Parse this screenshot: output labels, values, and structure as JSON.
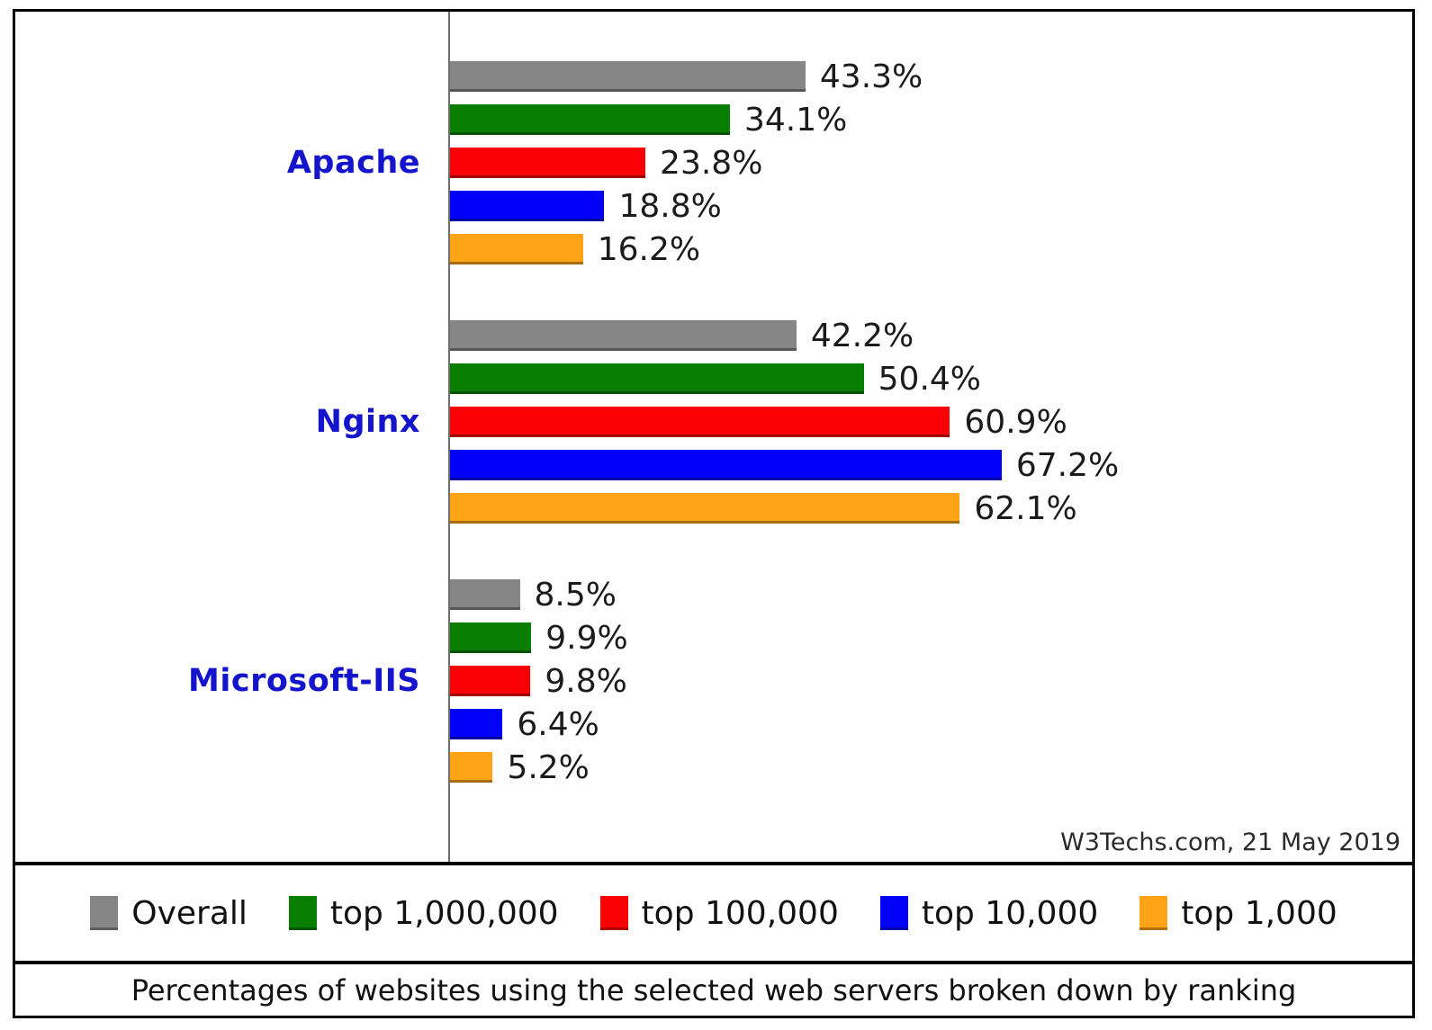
{
  "watermark": "W3Techs.com, 21 May 2019",
  "caption": "Percentages of websites using the selected web servers broken down by ranking",
  "colors": {
    "category_label": "#1414cc",
    "axis_line": "#6e6e6e",
    "frame_border": "#000000",
    "value_label": "#1b1b1b"
  },
  "chart_data": {
    "type": "bar",
    "orientation": "horizontal",
    "title": "Percentages of websites using the selected web servers broken down by ranking",
    "source": "W3Techs.com, 21 May 2019",
    "categories": [
      "Apache",
      "Nginx",
      "Microsoft-IIS"
    ],
    "series": [
      {
        "name": "Overall",
        "color": "#868686",
        "values": [
          43.3,
          42.2,
          8.5
        ]
      },
      {
        "name": "top 1,000,000",
        "color": "#0a7e00",
        "values": [
          34.1,
          50.4,
          9.9
        ]
      },
      {
        "name": "top 100,000",
        "color": "#fa0004",
        "values": [
          23.8,
          60.9,
          9.8
        ]
      },
      {
        "name": "top 10,000",
        "color": "#0101fa",
        "values": [
          18.8,
          67.2,
          6.4
        ]
      },
      {
        "name": "top 1,000",
        "color": "#ffa317",
        "values": [
          16.2,
          62.1,
          5.2
        ]
      }
    ],
    "value_labels": [
      [
        "43.3%",
        "34.1%",
        "23.8%",
        "18.8%",
        "16.2%"
      ],
      [
        "42.2%",
        "50.4%",
        "60.9%",
        "67.2%",
        "62.1%"
      ],
      [
        "8.5%",
        "9.9%",
        "9.8%",
        "6.4%",
        "5.2%"
      ]
    ],
    "value_suffix": "%",
    "xlim": [
      0,
      100
    ],
    "grid": false,
    "legend_position": "bottom"
  }
}
